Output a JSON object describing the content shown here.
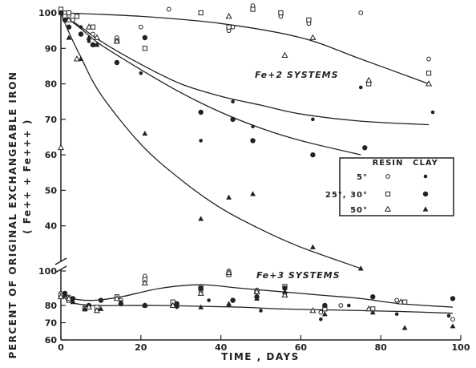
{
  "chart_data": [
    {
      "panel": "upper",
      "type": "scatter",
      "annotation": "Fe+2 SYSTEMS",
      "ylim": [
        30,
        100
      ],
      "xlim": [
        0,
        100
      ],
      "yticks": [
        "40",
        "50",
        "60",
        "70",
        "80",
        "90",
        "100"
      ],
      "fit_curves": [
        {
          "x": [
            0,
            20,
            40,
            60,
            75,
            92
          ],
          "y": [
            100,
            99,
            97,
            93,
            87,
            80
          ]
        },
        {
          "x": [
            0,
            5,
            10,
            20,
            30,
            40,
            50,
            60,
            75,
            92
          ],
          "y": [
            100,
            96,
            92,
            85.5,
            80,
            76.5,
            74,
            71.5,
            69.5,
            68.5
          ]
        },
        {
          "x": [
            0,
            5,
            10,
            20,
            30,
            40,
            50,
            60,
            75
          ],
          "y": [
            100,
            95.5,
            91,
            84,
            77.5,
            72,
            67.5,
            64,
            60
          ]
        },
        {
          "x": [
            0,
            2,
            5,
            10,
            20,
            30,
            40,
            50,
            60,
            75
          ],
          "y": [
            100,
            94.5,
            87.5,
            77,
            63,
            53,
            45,
            39,
            34,
            28
          ]
        }
      ],
      "series": [
        {
          "marker": "open-circle",
          "x": [
            0,
            1,
            2,
            3,
            8,
            14,
            20,
            27,
            42,
            43,
            48,
            55,
            62,
            75,
            92
          ],
          "y": [
            101,
            100,
            99,
            98,
            94,
            93,
            96,
            101,
            95,
            96,
            102,
            99,
            97,
            100,
            87
          ]
        },
        {
          "marker": "filled-dot",
          "x": [
            0,
            1,
            2,
            5,
            7,
            9,
            20,
            35,
            43,
            48,
            63,
            75,
            93
          ],
          "y": [
            100,
            99,
            98,
            96,
            92,
            91,
            83,
            64,
            75,
            68,
            70,
            79,
            72
          ]
        },
        {
          "marker": "open-square",
          "x": [
            0,
            1,
            2,
            4,
            8,
            14,
            21,
            35,
            42,
            48,
            55,
            62,
            77,
            92
          ],
          "y": [
            101,
            99,
            100,
            99,
            96,
            92,
            90,
            100,
            96,
            101,
            100,
            98,
            80,
            83
          ]
        },
        {
          "marker": "filled-square-dot",
          "x": [
            0,
            1,
            2,
            5,
            8,
            14,
            21,
            35,
            43,
            48,
            63,
            76
          ],
          "y": [
            100,
            98,
            96,
            94,
            91,
            86,
            93,
            72,
            70,
            64,
            60,
            62
          ]
        },
        {
          "marker": "open-triangle",
          "x": [
            0,
            2,
            4,
            7,
            9,
            14,
            42,
            56,
            63,
            77,
            92
          ],
          "y": [
            62,
            98,
            87,
            96,
            93,
            92,
            99,
            88,
            93,
            81,
            80
          ]
        },
        {
          "marker": "filled-triangle",
          "x": [
            0,
            2,
            5,
            7,
            9,
            21,
            35,
            42,
            48,
            63,
            75
          ],
          "y": [
            100,
            93,
            87,
            93,
            91,
            66,
            42,
            48,
            49,
            34,
            28
          ]
        }
      ]
    },
    {
      "panel": "lower",
      "type": "scatter",
      "annotation": "Fe+3 SYSTEMS",
      "ylim": [
        60,
        100
      ],
      "xlim": [
        0,
        100
      ],
      "yticks": [
        "60",
        "70",
        "80",
        "100"
      ],
      "xticks": [
        "0",
        "20",
        "40",
        "60",
        "80",
        "100"
      ],
      "fit_curves": [
        {
          "x": [
            0,
            3,
            8,
            15,
            25,
            35,
            45,
            55,
            65,
            75,
            85,
            98
          ],
          "y": [
            88,
            84,
            83,
            85,
            90,
            92,
            90,
            88,
            86,
            84,
            81,
            79
          ]
        },
        {
          "x": [
            0,
            3,
            8,
            15,
            25,
            35,
            45,
            55,
            65,
            75,
            85,
            98
          ],
          "y": [
            86,
            81.5,
            80,
            80,
            80,
            79.5,
            79,
            78,
            77.5,
            77,
            76.5,
            75.5
          ]
        }
      ],
      "series": [
        {
          "marker": "open-circle",
          "x": [
            0,
            2,
            6,
            9,
            15,
            21,
            28,
            35,
            42,
            49,
            56,
            65,
            70,
            84,
            98
          ],
          "y": [
            87,
            85,
            79,
            77,
            83,
            97,
            80,
            88,
            100,
            89,
            87,
            76,
            80,
            83,
            72
          ]
        },
        {
          "marker": "filled-dot",
          "x": [
            1,
            3,
            7,
            9,
            15,
            29,
            37,
            42,
            50,
            56,
            65,
            72,
            84,
            97
          ],
          "y": [
            86,
            82,
            80,
            78,
            82,
            79,
            83,
            80,
            77,
            90,
            72,
            80,
            75,
            74
          ]
        },
        {
          "marker": "open-square",
          "x": [
            0,
            2,
            6,
            9,
            14,
            21,
            28,
            35,
            42,
            49,
            56,
            66,
            78,
            86
          ],
          "y": [
            86,
            83,
            78,
            79,
            85,
            95,
            82,
            90,
            98,
            88,
            91,
            78,
            78,
            82
          ]
        },
        {
          "marker": "filled-square-dot",
          "x": [
            1,
            3,
            7,
            10,
            15,
            21,
            29,
            35,
            43,
            49,
            56,
            66,
            78,
            98
          ],
          "y": [
            87,
            84,
            80,
            83,
            81,
            80,
            81,
            90,
            83,
            85,
            90,
            80,
            85,
            84
          ]
        },
        {
          "marker": "open-triangle",
          "x": [
            0,
            2,
            7,
            9,
            14,
            21,
            28,
            35,
            42,
            49,
            56,
            63,
            77,
            85
          ],
          "y": [
            85,
            84,
            79,
            77,
            84,
            93,
            80,
            87,
            99,
            88,
            86,
            77,
            78,
            82
          ]
        },
        {
          "marker": "filled-triangle",
          "x": [
            1,
            3,
            6,
            10,
            15,
            21,
            29,
            35,
            42,
            49,
            56,
            66,
            78,
            86,
            98
          ],
          "y": [
            86,
            82,
            78,
            78,
            81,
            80,
            80,
            79,
            81,
            84,
            88,
            75,
            76,
            67,
            68
          ]
        }
      ]
    }
  ],
  "axes": {
    "xlabel": "TIME ,   DAYS",
    "ylabel": "PERCENT OF ORIGINAL EXCHANGEABLE IRON",
    "ylabel2": "( Fe++ + Fe+++ )"
  },
  "legend": {
    "headers": [
      "RESIN",
      "CLAY"
    ],
    "rows": [
      {
        "label": "5°",
        "resin": "open-circle",
        "clay": "filled-dot"
      },
      {
        "label": "25°, 30°",
        "resin": "open-square",
        "clay": "filled-square-dot"
      },
      {
        "label": "50°",
        "resin": "open-triangle",
        "clay": "filled-triangle"
      }
    ]
  },
  "colors": {
    "ink": "#222222",
    "background": "#ffffff"
  }
}
